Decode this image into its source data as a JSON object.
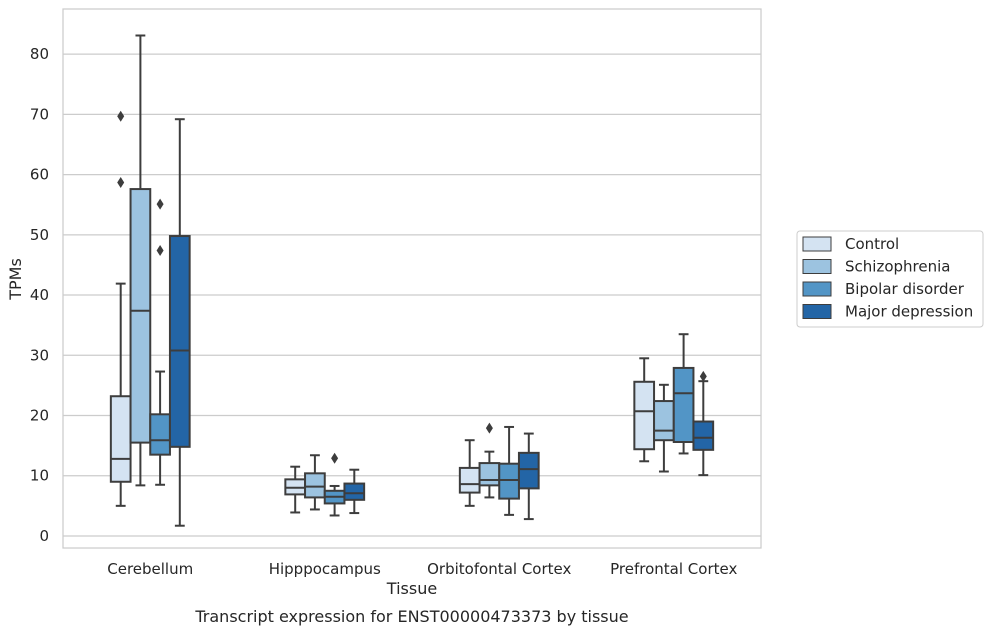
{
  "chart_data": {
    "type": "box",
    "title": "Transcript expression for ENST00000473373 by tissue",
    "xlabel": "Tissue",
    "ylabel": "TPMs",
    "ylim": [
      -2,
      87.5
    ],
    "yticks": [
      0,
      10,
      20,
      30,
      40,
      50,
      60,
      70,
      80
    ],
    "grid": "horizontal",
    "legend_position": "right",
    "categories": [
      "Cerebellum",
      "Hipppocampus",
      "Orbitofontal Cortex",
      "Prefrontal Cortex"
    ],
    "series": [
      {
        "name": "Control",
        "color": "#d4e3f2",
        "boxes": [
          {
            "min": 5.0,
            "q1": 9.0,
            "median": 12.8,
            "q3": 23.2,
            "max": 41.9,
            "outliers": [
              58.7,
              69.7
            ]
          },
          {
            "min": 3.9,
            "q1": 6.9,
            "median": 8.0,
            "q3": 9.4,
            "max": 11.5,
            "outliers": []
          },
          {
            "min": 5.0,
            "q1": 7.2,
            "median": 8.6,
            "q3": 11.3,
            "max": 15.9,
            "outliers": []
          },
          {
            "min": 12.4,
            "q1": 14.4,
            "median": 20.7,
            "q3": 25.6,
            "max": 29.5,
            "outliers": []
          }
        ]
      },
      {
        "name": "Schizophrenia",
        "color": "#9cc3e0",
        "boxes": [
          {
            "min": 8.4,
            "q1": 15.5,
            "median": 37.4,
            "q3": 57.6,
            "max": 83.1,
            "outliers": []
          },
          {
            "min": 4.4,
            "q1": 6.4,
            "median": 8.2,
            "q3": 10.4,
            "max": 13.4,
            "outliers": []
          },
          {
            "min": 6.4,
            "q1": 8.4,
            "median": 9.3,
            "q3": 12.1,
            "max": 14.0,
            "outliers": [
              17.9
            ]
          },
          {
            "min": 10.7,
            "q1": 15.9,
            "median": 17.5,
            "q3": 22.4,
            "max": 25.1,
            "outliers": []
          }
        ]
      },
      {
        "name": "Bipolar disorder",
        "color": "#5295c6",
        "boxes": [
          {
            "min": 8.5,
            "q1": 13.5,
            "median": 15.9,
            "q3": 20.2,
            "max": 27.3,
            "outliers": [
              47.4,
              55.1
            ]
          },
          {
            "min": 3.4,
            "q1": 5.4,
            "median": 6.5,
            "q3": 7.5,
            "max": 8.3,
            "outliers": [
              12.9
            ]
          },
          {
            "min": 3.5,
            "q1": 6.2,
            "median": 9.3,
            "q3": 12.0,
            "max": 18.1,
            "outliers": []
          },
          {
            "min": 13.7,
            "q1": 15.6,
            "median": 23.7,
            "q3": 27.9,
            "max": 33.5,
            "outliers": []
          }
        ]
      },
      {
        "name": "Major depression",
        "color": "#2365a6",
        "boxes": [
          {
            "min": 1.7,
            "q1": 14.8,
            "median": 30.8,
            "q3": 49.8,
            "max": 69.2,
            "outliers": []
          },
          {
            "min": 3.8,
            "q1": 6.0,
            "median": 7.1,
            "q3": 8.7,
            "max": 11.0,
            "outliers": []
          },
          {
            "min": 2.8,
            "q1": 7.9,
            "median": 11.1,
            "q3": 13.8,
            "max": 17.0,
            "outliers": []
          },
          {
            "min": 10.1,
            "q1": 14.3,
            "median": 16.3,
            "q3": 19.0,
            "max": 25.7,
            "outliers": [
              26.5
            ]
          }
        ]
      }
    ]
  }
}
